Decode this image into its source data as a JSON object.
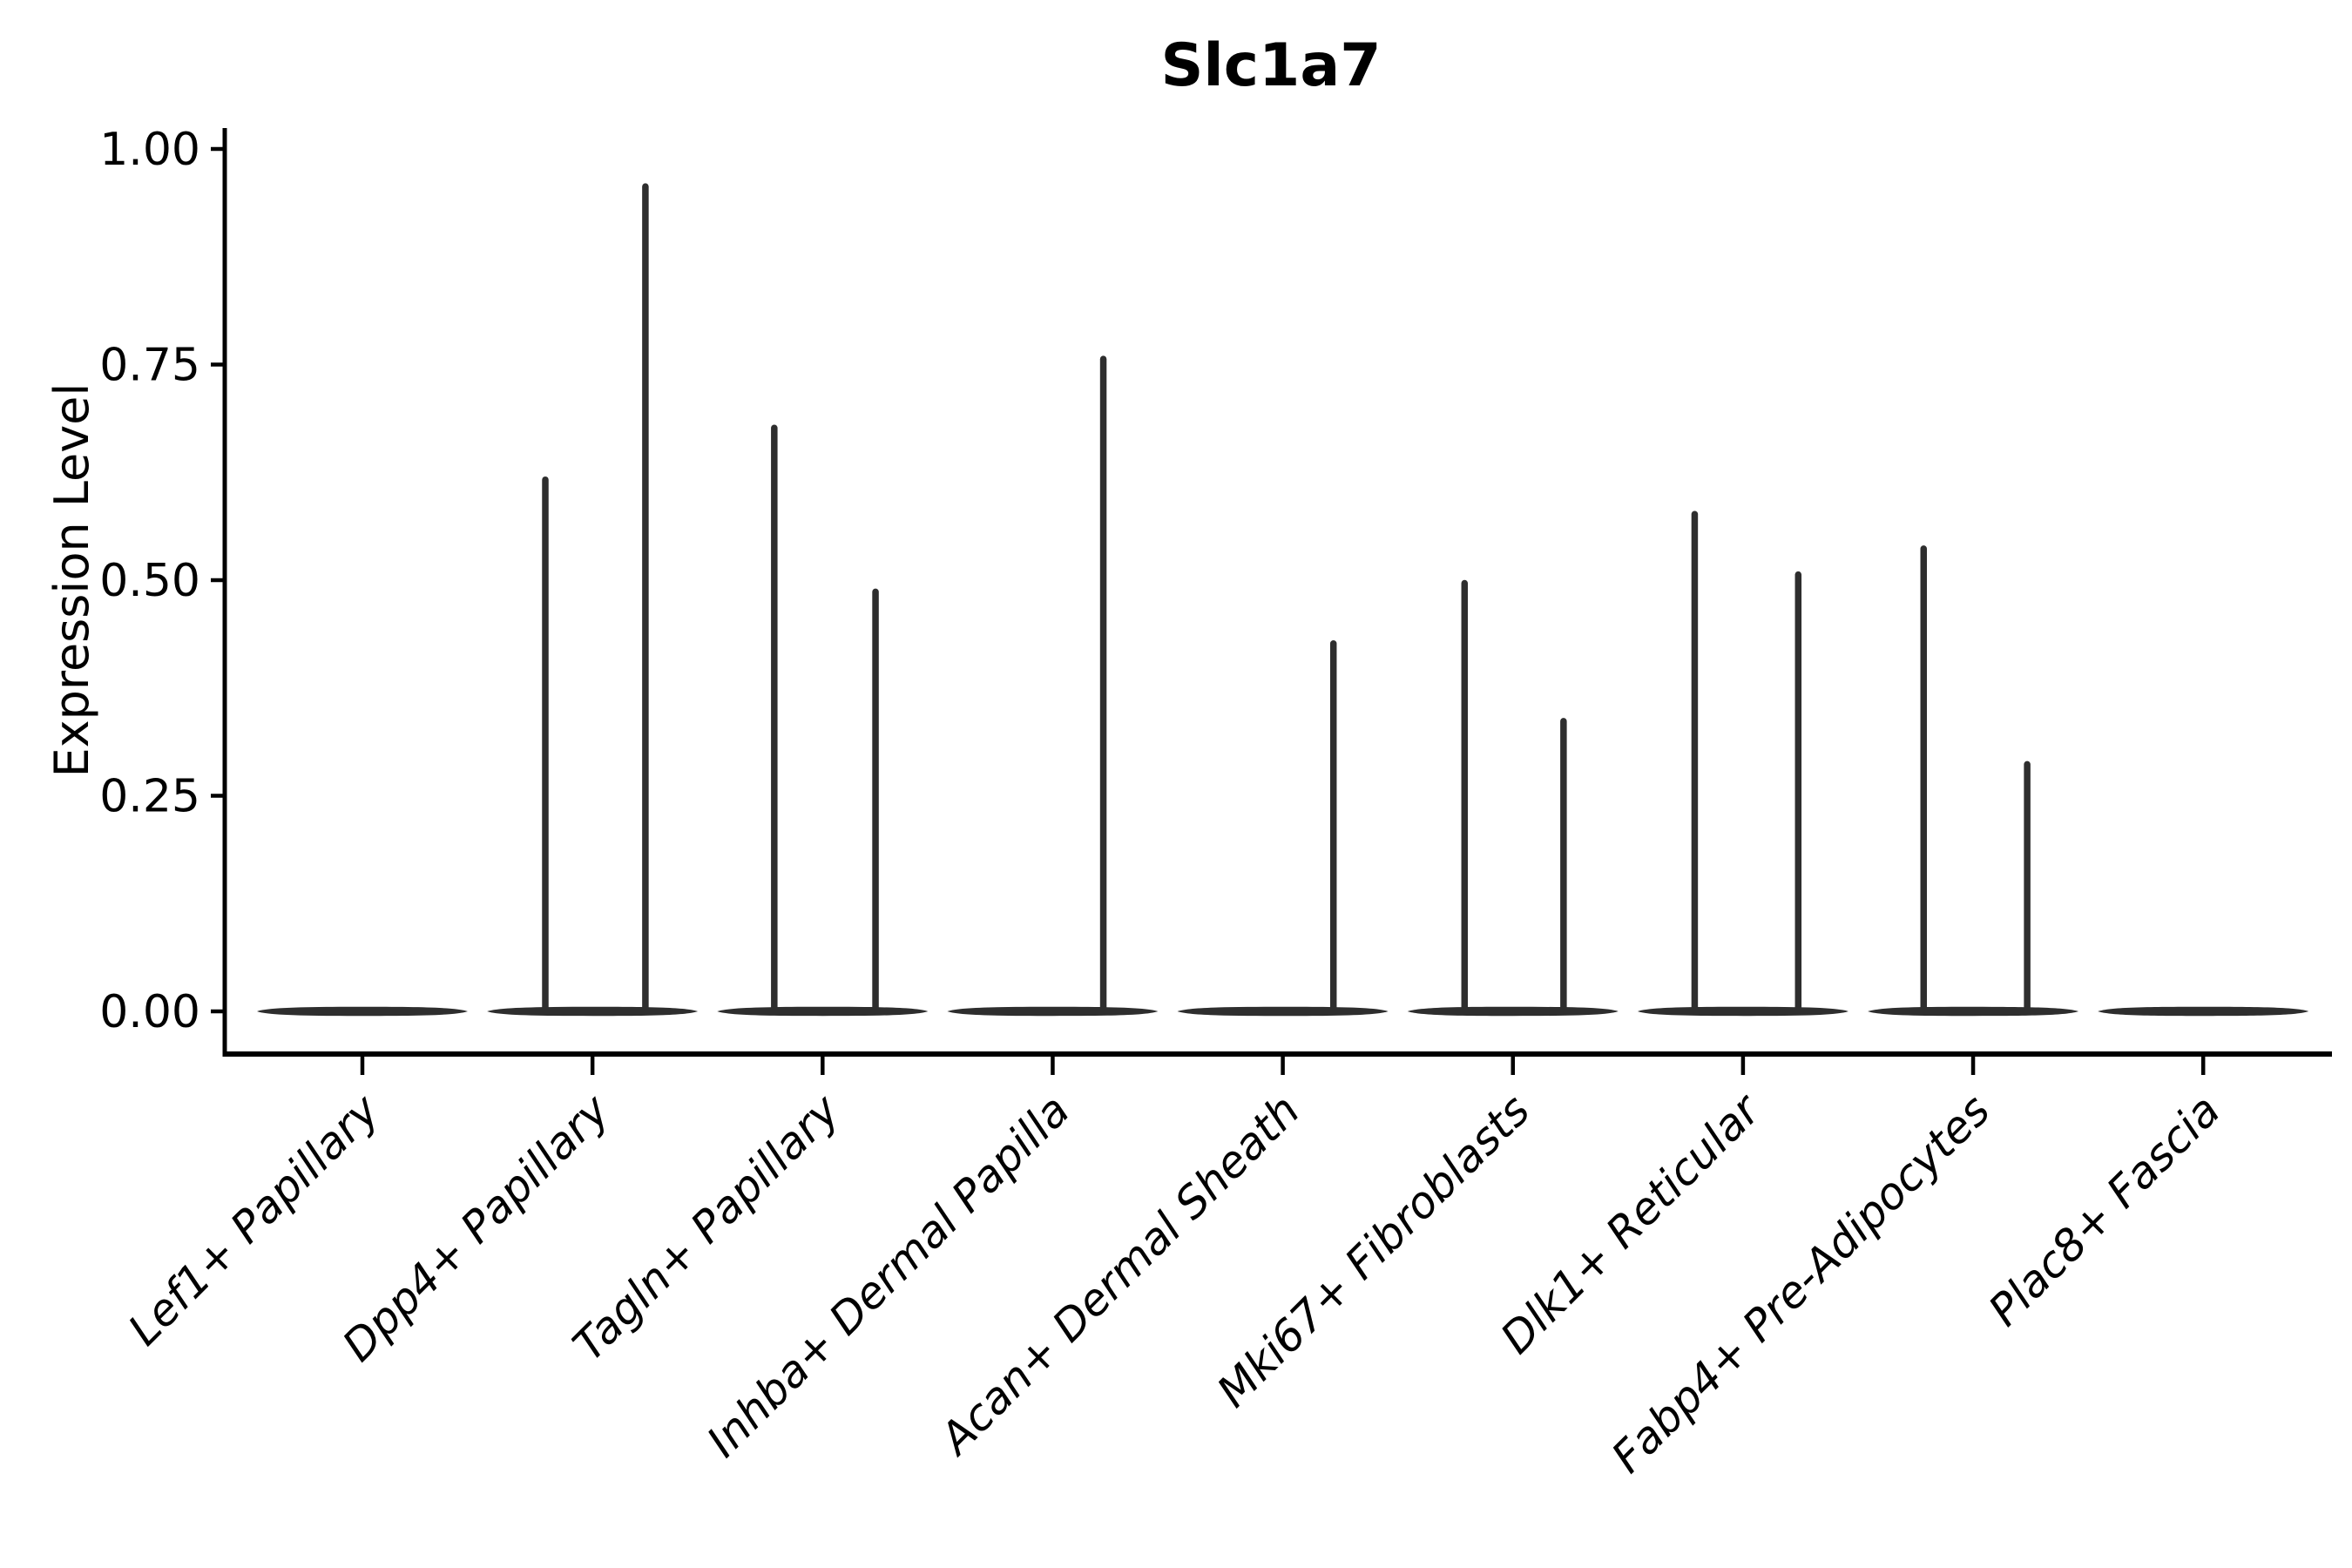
{
  "figure": {
    "title": "Slc1a7",
    "background_color": "#ffffff",
    "violin_color": "#2e2e2e",
    "axis_color": "#000000"
  },
  "chart_data": {
    "type": "violin",
    "title": "Slc1a7",
    "xlabel": "",
    "ylabel": "Expression Level",
    "grid": false,
    "legend": false,
    "ylim": [
      -0.05,
      1.03
    ],
    "ytick_labels": [
      "0.00",
      "0.25",
      "0.50",
      "0.75",
      "1.00"
    ],
    "ytick_values": [
      0,
      0.25,
      0.5,
      0.75,
      1.0
    ],
    "x_tick_rotation_deg": 45,
    "categories": [
      "Lef1+ Papillary",
      "Dpp4+ Papillary",
      "Tagln+ Papillary",
      "Inhba+ Dermal Papilla",
      "Acan+ Dermal Sheath",
      "Mki67+ Fibroblasts",
      "Dlk1+ Reticular",
      "Fabp4+ Pre-Adipocytes",
      "Plac8+ Fascia"
    ],
    "series": [
      {
        "name": "Lef1+ Papillary",
        "baseline_value": 0,
        "max_expression": 0.0,
        "spikes": []
      },
      {
        "name": "Dpp4+ Papillary",
        "baseline_value": 0,
        "max_expression": 0.96,
        "spikes": [
          {
            "x_offset": -0.205,
            "value": 0.62
          },
          {
            "x_offset": 0.23,
            "value": 0.96
          }
        ]
      },
      {
        "name": "Tagln+ Papillary",
        "baseline_value": 0,
        "max_expression": 0.68,
        "spikes": [
          {
            "x_offset": -0.21,
            "value": 0.68
          },
          {
            "x_offset": 0.23,
            "value": 0.49
          }
        ]
      },
      {
        "name": "Inhba+ Dermal Papilla",
        "baseline_value": 0,
        "max_expression": 0.76,
        "spikes": [
          {
            "x_offset": 0.22,
            "value": 0.76
          }
        ]
      },
      {
        "name": "Acan+ Dermal Sheath",
        "baseline_value": 0,
        "max_expression": 0.43,
        "spikes": [
          {
            "x_offset": 0.22,
            "value": 0.43
          }
        ]
      },
      {
        "name": "Mki67+ Fibroblasts",
        "baseline_value": 0,
        "max_expression": 0.5,
        "spikes": [
          {
            "x_offset": -0.21,
            "value": 0.5
          },
          {
            "x_offset": 0.22,
            "value": 0.34
          }
        ]
      },
      {
        "name": "Dlk1+ Reticular",
        "baseline_value": 0,
        "max_expression": 0.58,
        "spikes": [
          {
            "x_offset": -0.21,
            "value": 0.58
          },
          {
            "x_offset": 0.24,
            "value": 0.51
          }
        ]
      },
      {
        "name": "Fabp4+ Pre-Adipocytes",
        "baseline_value": 0,
        "max_expression": 0.54,
        "spikes": [
          {
            "x_offset": -0.215,
            "value": 0.54
          },
          {
            "x_offset": 0.235,
            "value": 0.29
          }
        ]
      },
      {
        "name": "Plac8+ Fascia",
        "baseline_value": 0,
        "max_expression": 0.0,
        "spikes": []
      }
    ]
  }
}
